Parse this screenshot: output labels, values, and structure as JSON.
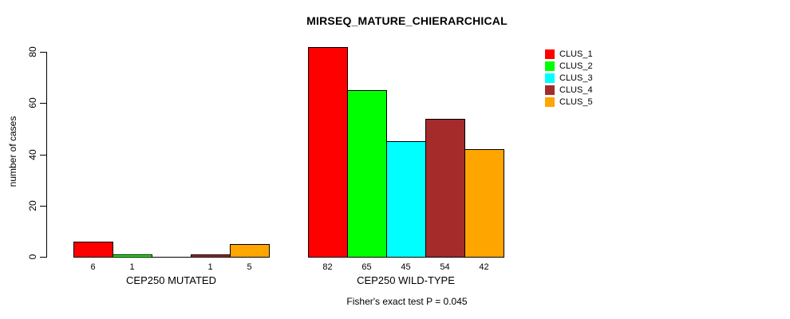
{
  "chart_data": {
    "type": "bar",
    "title": "MIRSEQ_MATURE_CHIERARCHICAL",
    "ylabel": "number of cases",
    "xlabel": "",
    "annotation": "Fisher's exact test P = 0.045",
    "categories": [
      "CEP250 MUTATED",
      "CEP250 WILD-TYPE"
    ],
    "series": [
      {
        "name": "CLUS_1",
        "color": "#FF0000",
        "values": [
          6,
          82
        ]
      },
      {
        "name": "CLUS_2",
        "color": "#00FF00",
        "values": [
          1,
          65
        ]
      },
      {
        "name": "CLUS_3",
        "color": "#00FFFF",
        "values": [
          0,
          45
        ]
      },
      {
        "name": "CLUS_4",
        "color": "#A52A2A",
        "values": [
          1,
          54
        ]
      },
      {
        "name": "CLUS_5",
        "color": "#FFA500",
        "values": [
          5,
          42
        ]
      }
    ],
    "bar_labels": [
      [
        "6",
        "1",
        "",
        "1",
        "5"
      ],
      [
        "82",
        "65",
        "45",
        "54",
        "42"
      ]
    ],
    "yticks": [
      "0",
      "20",
      "40",
      "60",
      "80"
    ],
    "ytick_values": [
      0,
      20,
      40,
      60,
      80
    ],
    "ylim": [
      0,
      80
    ],
    "grid": false,
    "legend_position": "top-right",
    "bar_border_color": "#000000",
    "axis_color": "#000000",
    "text_color": "#000000"
  }
}
